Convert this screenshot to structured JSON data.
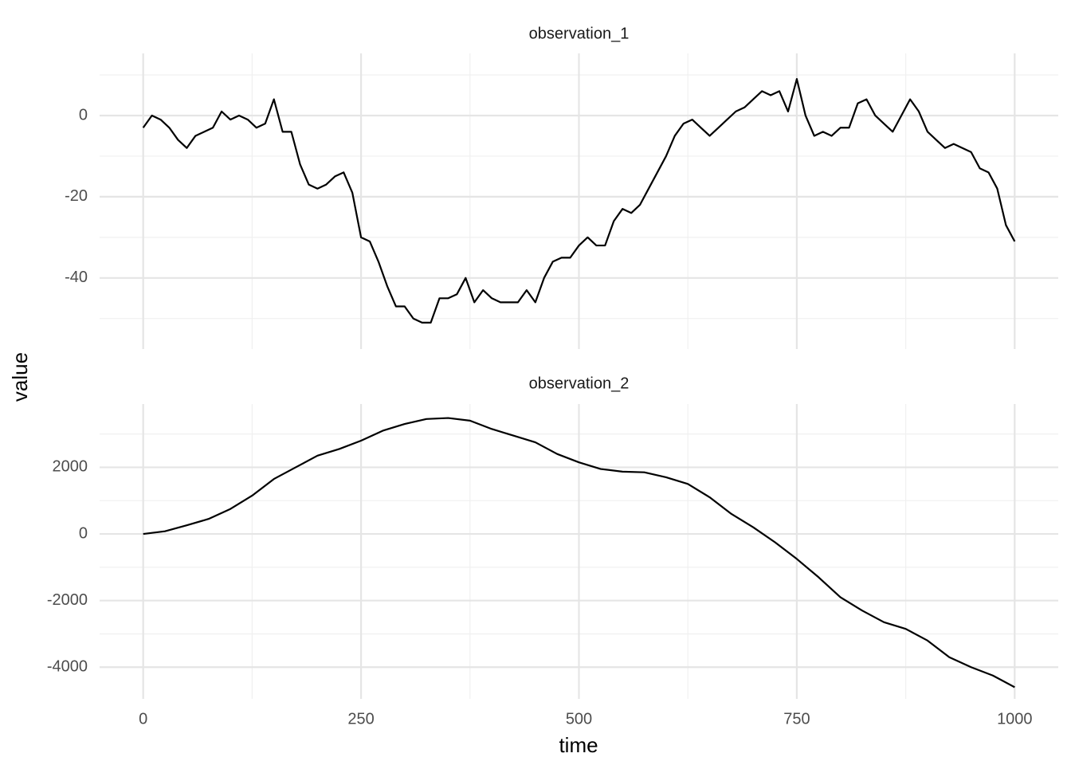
{
  "axis_labels": {
    "x": "time",
    "y": "value"
  },
  "chart_data": [
    {
      "type": "line",
      "title": "observation_1",
      "color": "#000000",
      "grid": true,
      "x": [
        0,
        10,
        20,
        30,
        40,
        50,
        60,
        70,
        80,
        90,
        100,
        110,
        120,
        130,
        140,
        150,
        160,
        170,
        180,
        190,
        200,
        210,
        220,
        230,
        240,
        250,
        260,
        270,
        280,
        290,
        300,
        310,
        320,
        330,
        340,
        350,
        360,
        370,
        380,
        390,
        400,
        410,
        420,
        430,
        440,
        450,
        460,
        470,
        480,
        490,
        500,
        510,
        520,
        530,
        540,
        550,
        560,
        570,
        580,
        590,
        600,
        610,
        620,
        630,
        640,
        650,
        660,
        670,
        680,
        690,
        700,
        710,
        720,
        730,
        740,
        750,
        760,
        770,
        780,
        790,
        800,
        810,
        820,
        830,
        840,
        850,
        860,
        870,
        880,
        890,
        900,
        910,
        920,
        930,
        940,
        950,
        960,
        970,
        980,
        990,
        1000
      ],
      "values": [
        -3,
        0,
        -1,
        -3,
        -6,
        -8,
        -5,
        -4,
        -3,
        1,
        -1,
        0,
        -1,
        -3,
        -2,
        4,
        -4,
        -4,
        -12,
        -17,
        -18,
        -17,
        -15,
        -14,
        -19,
        -30,
        -31,
        -36,
        -42,
        -47,
        -47,
        -50,
        -51,
        -51,
        -45,
        -45,
        -44,
        -40,
        -46,
        -43,
        -45,
        -46,
        -46,
        -46,
        -43,
        -46,
        -40,
        -36,
        -35,
        -35,
        -32,
        -30,
        -32,
        -32,
        -26,
        -23,
        -24,
        -22,
        -18,
        -14,
        -10,
        -5,
        -2,
        -1,
        -3,
        -5,
        -3,
        -1,
        1,
        2,
        4,
        6,
        5,
        6,
        1,
        9,
        0,
        -5,
        -4,
        -5,
        -3,
        -3,
        3,
        4,
        0,
        -2,
        -4,
        0,
        4,
        1,
        -4,
        -6,
        -8,
        -7,
        -8,
        -9,
        -13,
        -14,
        -18,
        -27,
        -31
      ],
      "xlim": [
        -50,
        1050
      ],
      "xticks": [
        0,
        250,
        500,
        750,
        1000
      ],
      "minor_xticks": [
        125,
        375,
        625,
        875
      ],
      "ylim": [
        -57.5,
        15.3
      ],
      "yticks": [
        -40,
        -20,
        0
      ],
      "minor_yticks": [
        -50,
        -30,
        -10,
        10
      ]
    },
    {
      "type": "line",
      "title": "observation_2",
      "color": "#000000",
      "grid": true,
      "x": [
        0,
        25,
        50,
        75,
        100,
        125,
        150,
        175,
        200,
        225,
        250,
        275,
        300,
        325,
        350,
        375,
        400,
        425,
        450,
        475,
        500,
        525,
        550,
        575,
        600,
        625,
        650,
        675,
        700,
        725,
        750,
        775,
        800,
        825,
        850,
        875,
        900,
        925,
        950,
        975,
        1000
      ],
      "values": [
        0,
        80,
        260,
        450,
        750,
        1150,
        1650,
        2000,
        2350,
        2550,
        2800,
        3100,
        3300,
        3450,
        3480,
        3400,
        3150,
        2950,
        2750,
        2400,
        2150,
        1950,
        1870,
        1850,
        1700,
        1500,
        1100,
        600,
        200,
        -250,
        -750,
        -1300,
        -1900,
        -2300,
        -2650,
        -2850,
        -3200,
        -3700,
        -4000,
        -4250,
        -4600
      ],
      "xlim": [
        -50,
        1050
      ],
      "xticks": [
        0,
        250,
        500,
        750,
        1000
      ],
      "minor_xticks": [
        125,
        375,
        625,
        875
      ],
      "ylim": [
        -4950,
        3900
      ],
      "yticks": [
        -4000,
        -2000,
        0,
        2000
      ],
      "minor_yticks": [
        -3000,
        -1000,
        1000,
        3000
      ]
    }
  ]
}
